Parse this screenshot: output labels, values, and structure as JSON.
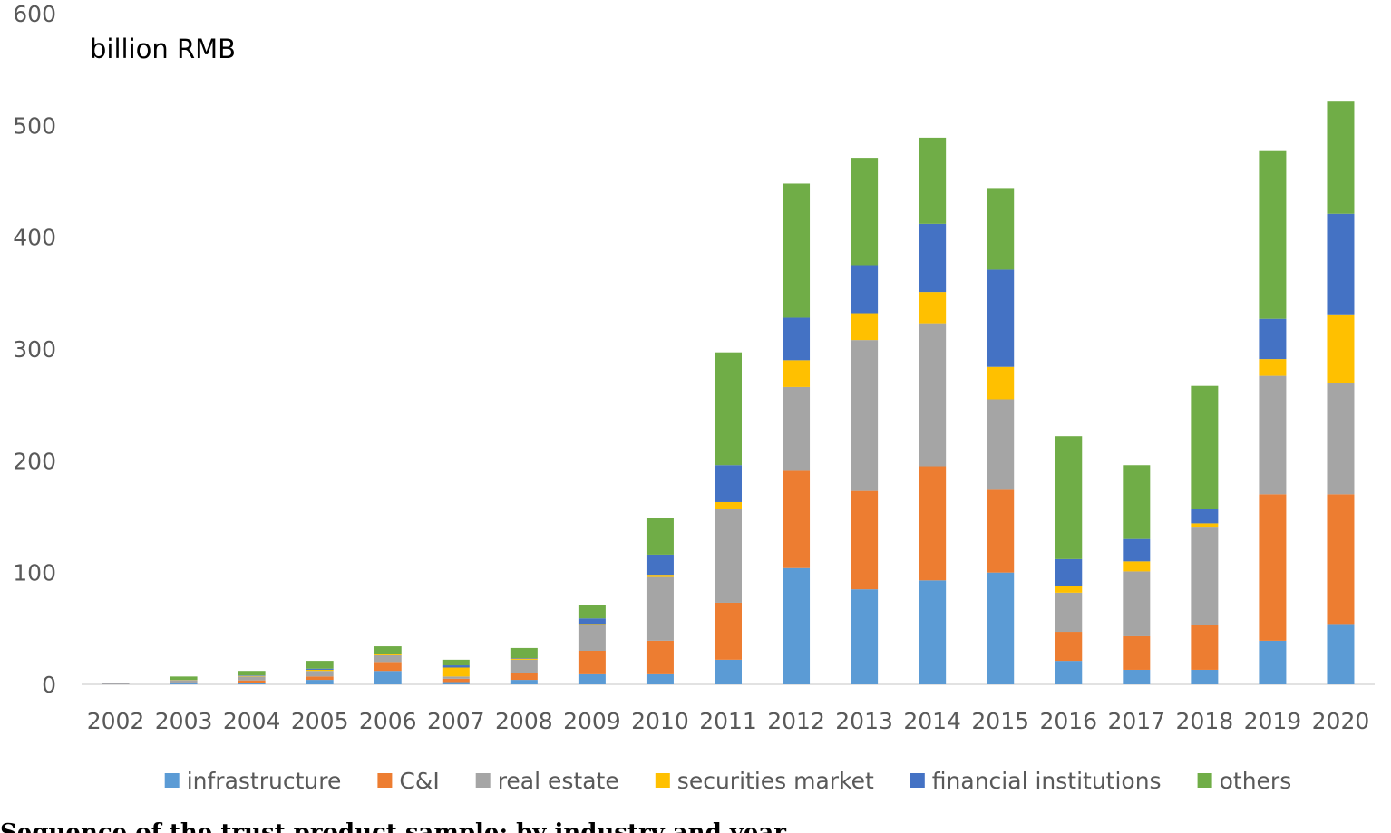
{
  "chart_data": {
    "type": "bar",
    "stacked": true,
    "unit_label": "billion RMB",
    "ylim": [
      0,
      600
    ],
    "y_ticks": [
      0,
      100,
      200,
      300,
      400,
      500,
      600
    ],
    "grid": false,
    "legend_position": "bottom",
    "categories": [
      "2002",
      "2003",
      "2004",
      "2005",
      "2006",
      "2007",
      "2008",
      "2009",
      "2010",
      "2011",
      "2012",
      "2013",
      "2014",
      "2015",
      "2016",
      "2017",
      "2018",
      "2019",
      "2020"
    ],
    "series": [
      {
        "name": "infrastructure",
        "color": "#5B9BD5",
        "values": [
          0.3,
          0.8,
          1.5,
          4,
          12,
          2,
          4,
          9,
          9,
          22,
          104,
          85,
          93,
          100,
          21,
          13,
          13,
          39,
          54
        ]
      },
      {
        "name": "C&I",
        "color": "#ED7D31",
        "values": [
          0.2,
          0.8,
          2,
          3,
          8,
          3,
          6,
          21,
          30,
          51,
          87,
          88,
          102,
          74,
          26,
          30,
          40,
          131,
          116
        ]
      },
      {
        "name": "real estate",
        "color": "#A5A5A5",
        "values": [
          0.5,
          1.9,
          3.5,
          5,
          6,
          2,
          12,
          23,
          57,
          84,
          75,
          135,
          128,
          81,
          35,
          58,
          88,
          106,
          100
        ]
      },
      {
        "name": "securities market",
        "color": "#FFC000",
        "values": [
          0,
          0.3,
          0.5,
          1,
          1,
          8,
          1,
          1,
          2,
          6,
          24,
          24,
          28,
          29,
          6,
          9,
          3,
          15,
          61
        ]
      },
      {
        "name": "financial institutions",
        "color": "#4472C4",
        "values": [
          0,
          0.2,
          0.5,
          1,
          0,
          2,
          0.5,
          5,
          18,
          33,
          38,
          43,
          61,
          87,
          24,
          20,
          13,
          36,
          90
        ]
      },
      {
        "name": "others",
        "color": "#70AD47",
        "values": [
          0.3,
          3,
          4,
          7,
          7,
          5,
          9,
          12,
          33,
          101,
          120,
          96,
          77,
          73,
          110,
          66,
          110,
          150,
          101
        ]
      }
    ]
  },
  "caption": "Sequence of the trust product sample: by industry and year"
}
